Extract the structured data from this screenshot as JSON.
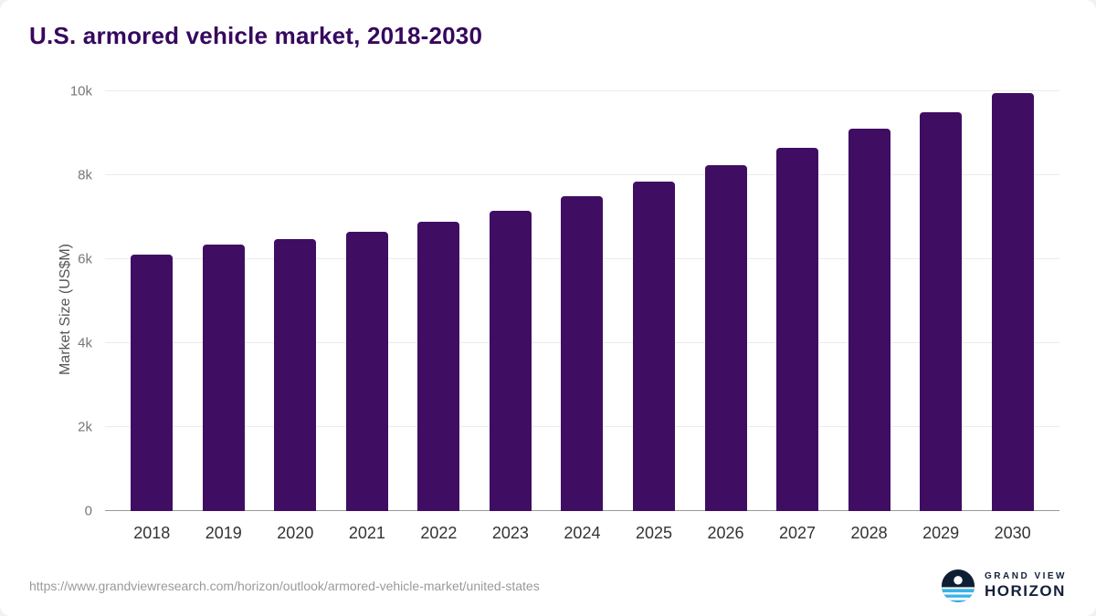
{
  "chart_data": {
    "type": "bar",
    "title": "U.S. armored vehicle market, 2018-2030",
    "xlabel": "",
    "ylabel": "Market Size (US$M)",
    "categories": [
      "2018",
      "2019",
      "2020",
      "2021",
      "2022",
      "2023",
      "2024",
      "2025",
      "2026",
      "2027",
      "2028",
      "2029",
      "2030"
    ],
    "values": [
      6100,
      6350,
      6480,
      6650,
      6900,
      7150,
      7500,
      7850,
      8250,
      8650,
      9100,
      9500,
      9950
    ],
    "ylim": [
      0,
      10000
    ],
    "yticks": [
      {
        "value": 0,
        "label": "0"
      },
      {
        "value": 2000,
        "label": "2k"
      },
      {
        "value": 4000,
        "label": "4k"
      },
      {
        "value": 6000,
        "label": "6k"
      },
      {
        "value": 8000,
        "label": "8k"
      },
      {
        "value": 10000,
        "label": "10k"
      }
    ],
    "bar_color": "#3f0e63",
    "grid": true,
    "legend_position": "none"
  },
  "footer": {
    "source_url": "https://www.grandviewresearch.com/horizon/outlook/armored-vehicle-market/united-states",
    "logo": {
      "line1": "GRAND VIEW",
      "line2": "HORIZON"
    }
  },
  "colors": {
    "title": "#36085e",
    "grid": "#ebebeb",
    "axis": "#9a9a9a"
  }
}
